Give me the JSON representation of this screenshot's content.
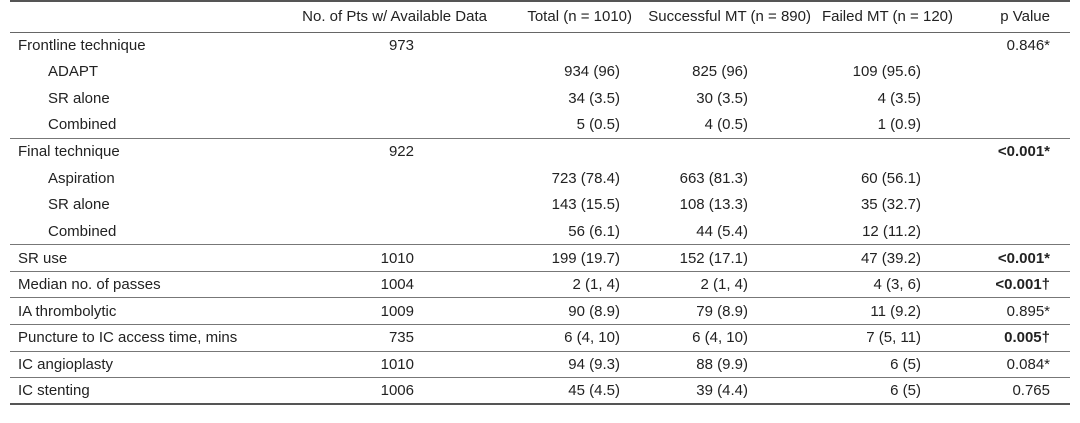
{
  "headers": {
    "col0": "",
    "col1": "No. of Pts w/ Available Data",
    "col2": "Total (n = 1010)",
    "col3": "Successful MT (n = 890)",
    "col4": "Failed MT (n = 120)",
    "col5": "p Value"
  },
  "rows": [
    {
      "label": "Frontline technique",
      "npts": "973",
      "total": "",
      "success": "",
      "failed": "",
      "p": "0.846*"
    },
    {
      "label": "ADAPT",
      "npts": "",
      "total": "934 (96)",
      "success": "825 (96)",
      "failed": "109 (95.6)",
      "p": ""
    },
    {
      "label": "SR alone",
      "npts": "",
      "total": "34 (3.5)",
      "success": "30 (3.5)",
      "failed": "4 (3.5)",
      "p": ""
    },
    {
      "label": "Combined",
      "npts": "",
      "total": "5 (0.5)",
      "success": "4 (0.5)",
      "failed": "1 (0.9)",
      "p": ""
    },
    {
      "label": "Final technique",
      "npts": "922",
      "total": "",
      "success": "",
      "failed": "",
      "p": "<0.001*"
    },
    {
      "label": "Aspiration",
      "npts": "",
      "total": "723 (78.4)",
      "success": "663 (81.3)",
      "failed": "60 (56.1)",
      "p": ""
    },
    {
      "label": "SR alone",
      "npts": "",
      "total": "143 (15.5)",
      "success": "108 (13.3)",
      "failed": "35 (32.7)",
      "p": ""
    },
    {
      "label": "Combined",
      "npts": "",
      "total": "56 (6.1)",
      "success": "44 (5.4)",
      "failed": "12 (11.2)",
      "p": ""
    },
    {
      "label": "SR use",
      "npts": "1010",
      "total": "199 (19.7)",
      "success": "152 (17.1)",
      "failed": "47 (39.2)",
      "p": "<0.001*"
    },
    {
      "label": "Median no. of passes",
      "npts": "1004",
      "total": "2 (1, 4)",
      "success": "2 (1, 4)",
      "failed": "4 (3, 6)",
      "p": "<0.001†"
    },
    {
      "label": "IA thrombolytic",
      "npts": "1009",
      "total": "90 (8.9)",
      "success": "79 (8.9)",
      "failed": "11 (9.2)",
      "p": "0.895*"
    },
    {
      "label": "Puncture to IC access time, mins",
      "npts": "735",
      "total": "6 (4, 10)",
      "success": "6 (4, 10)",
      "failed": "7 (5, 11)",
      "p": "0.005†"
    },
    {
      "label": "IC angioplasty",
      "npts": "1010",
      "total": "94 (9.3)",
      "success": "88 (9.9)",
      "failed": "6 (5)",
      "p": "0.084*"
    },
    {
      "label": "IC stenting",
      "npts": "1006",
      "total": "45 (4.5)",
      "success": "39 (4.4)",
      "failed": "6 (5)",
      "p": "0.765"
    }
  ]
}
